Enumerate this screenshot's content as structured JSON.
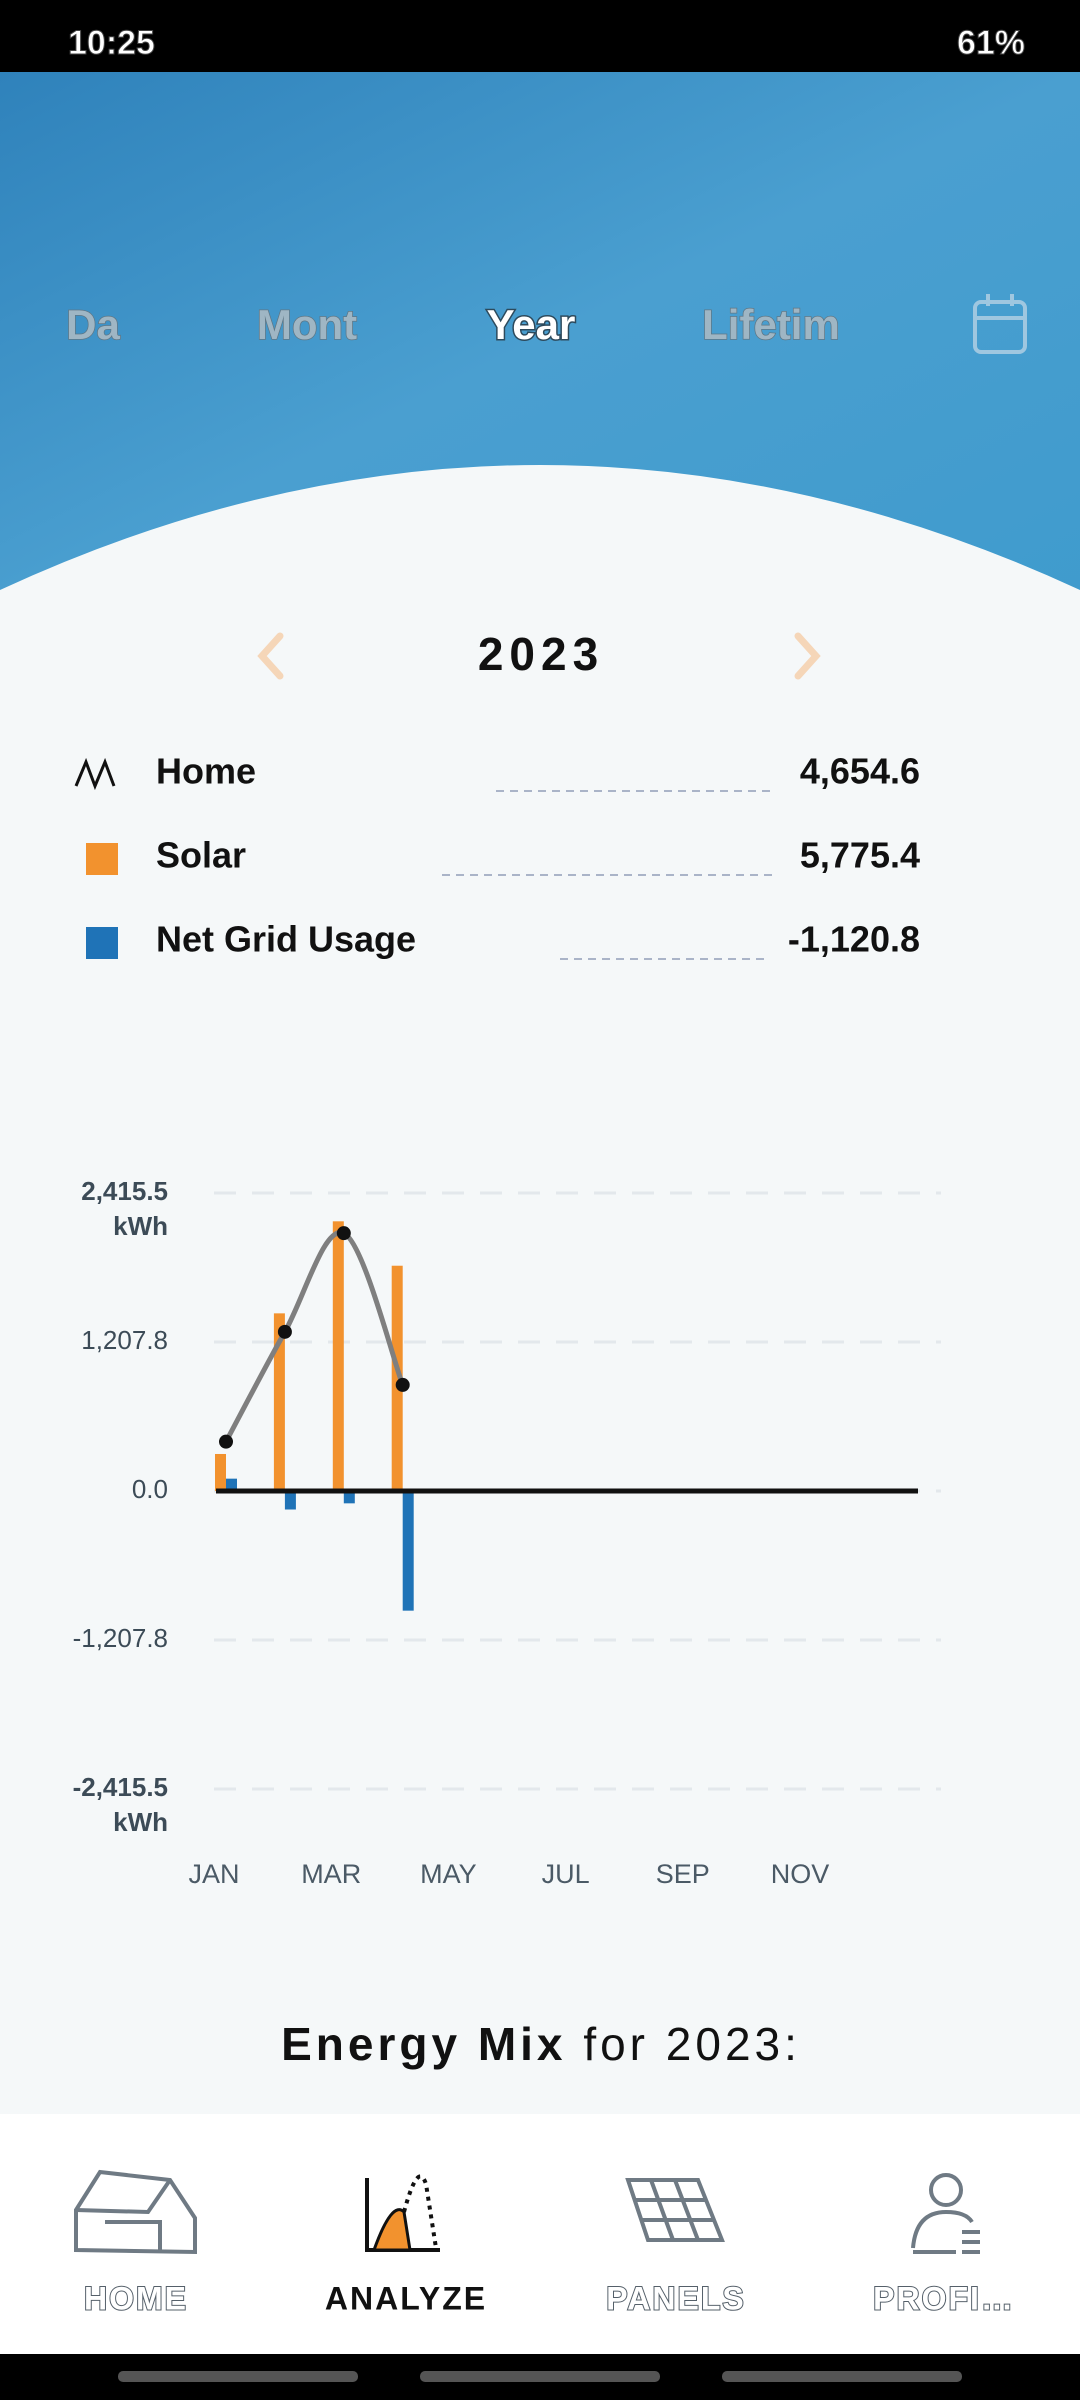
{
  "status_bar": {
    "time": "10:25",
    "battery": "61%"
  },
  "tabs": [
    "Da",
    "Mont",
    "Year",
    "Lifetim"
  ],
  "period": "2023",
  "chart_data": {
    "type": "bar",
    "categories": [
      "JAN",
      null,
      "MAR",
      null,
      "MAY",
      null,
      "JUL",
      null,
      "SEP",
      null,
      "NOV",
      null
    ],
    "series": [
      {
        "name": "Home",
        "type": "line",
        "color": "#7f7f7f",
        "total_label": "4,654.6",
        "values": [
          400,
          1290,
          2090,
          860,
          null,
          null,
          null,
          null,
          null,
          null,
          null,
          null
        ]
      },
      {
        "name": "Solar",
        "color": "#f2922e",
        "total_label": "5,775.4",
        "values": [
          300,
          1440,
          2186,
          1826,
          null,
          null,
          null,
          null,
          null,
          null,
          null,
          null
        ]
      },
      {
        "name": "Net Grid Usage",
        "color": "#1f73b7",
        "total_label": "-1,120.8",
        "values": [
          100,
          -150,
          -100,
          -970,
          null,
          null,
          null,
          null,
          null,
          null,
          null,
          null
        ]
      }
    ],
    "ylim": [
      -2415.5,
      2415.5
    ],
    "yticks": [
      {
        "value": 2415.5,
        "label": "2,415.5"
      },
      {
        "value": 1207.8,
        "label": "1,207.8"
      },
      {
        "value": 0,
        "label": "0.0"
      },
      {
        "value": -1207.8,
        "label": "-1,207.8"
      },
      {
        "value": -2415.5,
        "label": "-2,415.5"
      }
    ],
    "y_unit": "kWh",
    "grid": true
  },
  "energy_mix": {
    "bold": "Energy Mix",
    "rest": "for 2023:"
  },
  "nav": [
    "HOME",
    "ANALYZE",
    "PANELS",
    "PROFI…"
  ]
}
